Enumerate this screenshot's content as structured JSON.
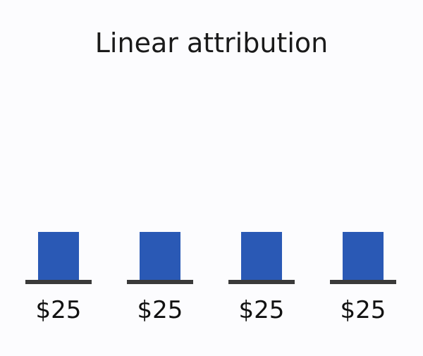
{
  "chart_data": {
    "type": "bar",
    "title": "Linear attribution",
    "categories": [
      "",
      "",
      "",
      ""
    ],
    "values": [
      25,
      25,
      25,
      25
    ],
    "data_labels": [
      "$25",
      "$25",
      "$25",
      "$25"
    ],
    "xlabel": "",
    "ylabel": "",
    "grid": false,
    "legend": "none",
    "colors": {
      "bar": "#2a59b5",
      "baseline": "#3a3a3a",
      "background": "#fcfcfe"
    }
  }
}
